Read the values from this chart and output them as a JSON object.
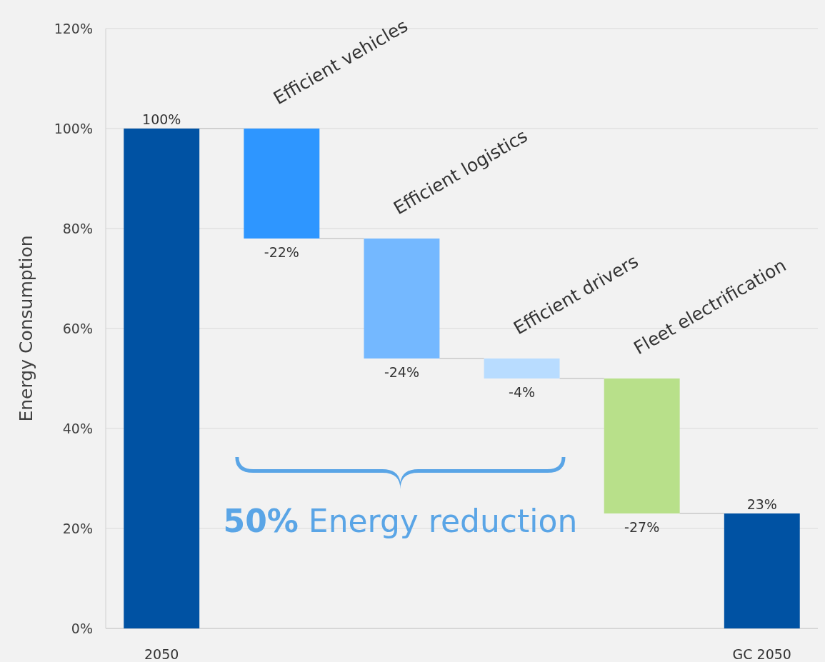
{
  "chart_data": {
    "type": "bar",
    "categories": [
      "2050",
      null,
      null,
      null,
      null,
      "GC 2050"
    ],
    "values": [
      100,
      -22,
      -24,
      -4,
      -27,
      23
    ],
    "base": [
      0,
      100,
      78,
      54,
      50,
      0
    ],
    "colors": [
      "#0052a3",
      "#2e96ff",
      "#74b8ff",
      "#b8dcff",
      "#b8e08a",
      "#0052a3"
    ],
    "value_labels": [
      "100%",
      "-22%",
      "-24%",
      "-4%",
      "-27%",
      "23%"
    ],
    "ylabel": "Energy Consumption",
    "ylim": [
      0,
      120
    ],
    "yticks": [
      {
        "value": 0,
        "label": "0%"
      },
      {
        "value": 20,
        "label": "20%"
      },
      {
        "value": 40,
        "label": "40%"
      },
      {
        "value": 60,
        "label": "60%"
      },
      {
        "value": 80,
        "label": "80%"
      },
      {
        "value": 100,
        "label": "100%"
      },
      {
        "value": 120,
        "label": "120%"
      }
    ],
    "grid": "y",
    "annotations": [
      "Efficient vehicles",
      "Efficient logistics",
      "Efficient drivers",
      "Fleet electrification",
      "50% Energy reduction"
    ]
  }
}
